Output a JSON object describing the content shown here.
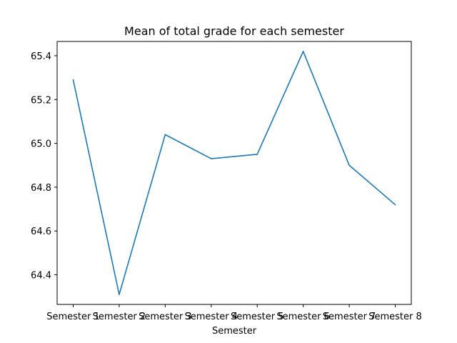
{
  "chart_data": {
    "type": "line",
    "title": "Mean of total grade for each semester",
    "xlabel": "Semester",
    "ylabel": "",
    "categories": [
      "Semester 1",
      "Semester 2",
      "Semester 3",
      "Semester 4",
      "Semester 5",
      "Semester 6",
      "Semester 7",
      "Semester 8"
    ],
    "series": [
      {
        "values": [
          65.29,
          64.31,
          65.04,
          64.93,
          64.95,
          65.42,
          64.9,
          64.72
        ],
        "color": "#1f77b4"
      }
    ],
    "ylim": [
      64.2647,
      65.4653
    ],
    "yticks": [
      64.4,
      64.6,
      64.8,
      65.0,
      65.2,
      65.4
    ],
    "ytick_labels": [
      "64.4",
      "64.6",
      "64.8",
      "65.0",
      "65.2",
      "65.4"
    ],
    "grid": false,
    "legend": "none"
  }
}
